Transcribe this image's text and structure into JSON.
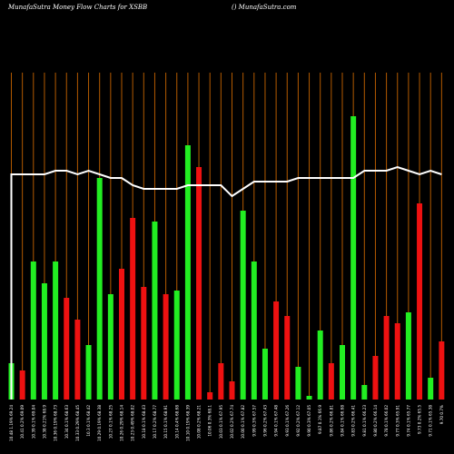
{
  "header": {
    "title_left": "MunafaSutra  Money Flow  Charts for XSBB",
    "title_right": "() MunafaSutra.com"
  },
  "colors": {
    "background": "#000000",
    "up": "#22ee22",
    "down": "#ee1111",
    "grid": "#b35a00",
    "line": "#ffffff"
  },
  "chart_data": {
    "type": "bar",
    "title": "MunafaSutra  Money Flow  Charts for XSBB",
    "subtitle": "() MunafaSutra.com",
    "grid": true,
    "categories": [
      "10.48 1.19% 69.24",
      "10.41 0.2% 69.09",
      "10.39 0.1% 69.04",
      "10.38 0.21% 68.9",
      "10.36 0.19% 68.73",
      "10.34 0.1% 68.63",
      "10.33 0.29% 68.45",
      "10.3 0.1% 68.42",
      "10.29 0.19% 68.38",
      "10.27 0.1% 68.25",
      "10.26 0.29% 68.14",
      "10.23 0.49% 68.02",
      "10.18 0.1% 68.43",
      "10.17 0.2% 68.77",
      "10.15 0.1% 68.91",
      "10.14 0.4% 68.68",
      "10.10 0.19% 68.39",
      "10.08 0.2% 68.21",
      "10.06 0.3% 68.1",
      "10.03 0.1% 67.95",
      "10.02 0.2% 67.74",
      "10.00 0.1% 67.82",
      "9.99 0.3% 67.57",
      "9.96 0.2% 67.43",
      "9.94 0.1% 67.48",
      "9.93 0.1% 67.26",
      "9.92 0.2% 67.12",
      "9.90 0.3% 67.05",
      "9.87 0.1% 66.9",
      "9.86 0.2% 66.81",
      "9.84 0.1% 66.68",
      "9.83 0.2% 66.41",
      "9.81 0.1% 66.23",
      "9.80 0.2% 66.14",
      "9.78 0.1% 66.02",
      "9.77 0.3% 65.91",
      "9.74 0.1% 65.77",
      "9.73 0.2% 65.5",
      "9.71 0.1% 65.38",
      "9.70 0.7%"
    ],
    "directions": [
      "up",
      "down",
      "up",
      "up",
      "up",
      "down",
      "down",
      "up",
      "up",
      "up",
      "down",
      "down",
      "down",
      "up",
      "down",
      "up",
      "up",
      "down",
      "down",
      "down",
      "down",
      "up",
      "up",
      "up",
      "down",
      "down",
      "up",
      "up",
      "up",
      "down",
      "up",
      "up",
      "up",
      "down",
      "down",
      "down",
      "up",
      "down",
      "up",
      "down"
    ],
    "values": [
      10,
      8,
      38,
      32,
      38,
      28,
      22,
      15,
      61,
      29,
      36,
      50,
      31,
      49,
      29,
      30,
      70,
      64,
      2,
      10,
      5,
      52,
      38,
      14,
      27,
      23,
      9,
      1,
      19,
      10,
      15,
      78,
      4,
      12,
      23,
      21,
      24,
      54,
      6,
      16
    ],
    "series": [
      {
        "type": "line",
        "values": [
          62,
          62,
          62,
          62,
          63,
          63,
          62,
          63,
          62,
          61,
          61,
          59,
          58,
          58,
          58,
          58,
          59,
          59,
          59,
          59,
          56,
          58,
          60,
          60,
          60,
          60,
          61,
          61,
          61,
          61,
          61,
          61,
          63,
          63,
          63,
          64,
          63,
          62,
          63,
          62
        ]
      }
    ],
    "ylim": [
      0,
      90
    ]
  }
}
